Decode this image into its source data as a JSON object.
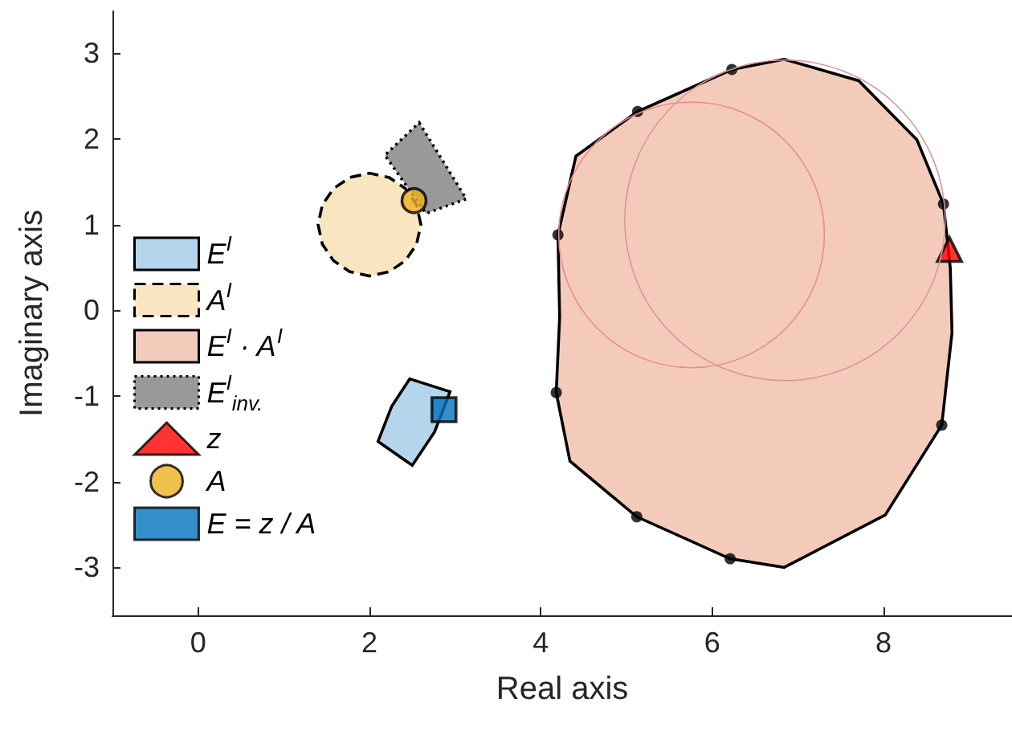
{
  "chart_data": {
    "type": "scatter",
    "xlabel": "Real axis",
    "ylabel": "Imaginary axis",
    "xlim": [
      -1,
      9.5
    ],
    "ylim": [
      -3.56,
      3.49
    ],
    "xticks": [
      0,
      2,
      4,
      6,
      8
    ],
    "yticks": [
      -3,
      -2,
      -1,
      0,
      1,
      2,
      3
    ],
    "grid": false,
    "legend": "left",
    "series": [
      {
        "name": "E$^{I}$",
        "type": "area",
        "color": "#b4d5ec",
        "line_style": "solid",
        "x": [
          2.47,
          2.94,
          2.76,
          2.5,
          2.1,
          2.26,
          2.47
        ],
        "values": [
          -0.8,
          -0.95,
          -1.42,
          -1.81,
          -1.53,
          -1.12,
          -0.8
        ]
      },
      {
        "name": "A$^{I}$",
        "type": "area",
        "color": "#f9e6c0",
        "line_style": "dashed",
        "x": [
          2.6,
          2.55,
          2.42,
          2.23,
          2.0,
          1.77,
          1.58,
          1.45,
          1.4,
          1.45,
          1.58,
          1.77,
          2.0,
          2.23,
          2.42,
          2.55,
          2.6
        ],
        "values": [
          1.0,
          1.23,
          1.42,
          1.55,
          1.6,
          1.55,
          1.42,
          1.23,
          1.0,
          0.77,
          0.58,
          0.45,
          0.4,
          0.45,
          0.58,
          0.77,
          1.0
        ]
      },
      {
        "name": "E$^{I}$ · A$^{I}$",
        "type": "area",
        "color": "#f4cbba",
        "line_style": "solid",
        "x": [
          4.2,
          4.41,
          5.13,
          6.23,
          6.84,
          7.71,
          8.39,
          8.7,
          8.78,
          8.8,
          8.68,
          8.02,
          6.84,
          6.21,
          5.12,
          4.34,
          4.18,
          4.22,
          4.2
        ],
        "values": [
          0.88,
          1.8,
          2.32,
          2.81,
          2.93,
          2.68,
          1.99,
          1.24,
          0.49,
          -0.26,
          -1.34,
          -2.39,
          -3.0,
          -2.9,
          -2.41,
          -1.76,
          -0.96,
          -0.08,
          0.88
        ]
      },
      {
        "name": "E$^{I}$$_{inv.}$",
        "type": "area",
        "color": "#999999",
        "line_style": "dotted",
        "x": [
          2.58,
          3.13,
          2.66,
          2.18,
          2.58
        ],
        "values": [
          2.19,
          1.3,
          1.13,
          1.81,
          2.19
        ]
      },
      {
        "color": "#000000",
        "marker": "circle",
        "x": [
          4.2,
          5.13,
          6.23,
          8.7,
          8.68,
          6.21,
          5.12,
          4.18
        ],
        "values": [
          0.88,
          2.32,
          2.81,
          1.24,
          -1.34,
          -2.9,
          -2.41,
          -0.96
        ]
      },
      {
        "name": "z",
        "color": "#ff0000",
        "marker": "triangle",
        "x": [
          8.77
        ],
        "values": [
          0.71
        ]
      },
      {
        "name": "A",
        "color": "#edb120",
        "marker": "circle",
        "x": [
          2.52
        ],
        "values": [
          1.28
        ]
      },
      {
        "name": "E = z / A",
        "color": "#0072bd",
        "marker": "square",
        "x": [
          2.87
        ],
        "values": [
          -1.16
        ]
      }
    ]
  }
}
